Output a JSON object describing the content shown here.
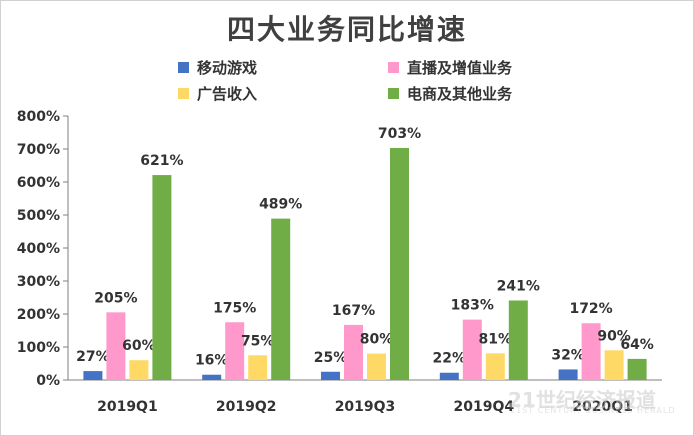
{
  "chart_data": {
    "type": "bar",
    "title": "四大业务同比增速",
    "categories": [
      "2019Q1",
      "2019Q2",
      "2019Q3",
      "2019Q4",
      "2020Q1"
    ],
    "series": [
      {
        "name": "移动游戏",
        "values": [
          27,
          16,
          25,
          22,
          32
        ],
        "labels": [
          "27%",
          "16%",
          "25%",
          "22%",
          "32%"
        ],
        "color": "#4472C4"
      },
      {
        "name": "直播及增值业务",
        "values": [
          205,
          175,
          167,
          183,
          172
        ],
        "labels": [
          "205%",
          "175%",
          "167%",
          "183%",
          "172%"
        ],
        "color": "#FF99CC"
      },
      {
        "name": "广告收入",
        "values": [
          60,
          75,
          80,
          81,
          90
        ],
        "labels": [
          "60%",
          "75%",
          "80%",
          "81%",
          "90%"
        ],
        "color": "#FFD966"
      },
      {
        "name": "电商及其他业务",
        "values": [
          621,
          489,
          703,
          241,
          64
        ],
        "labels": [
          "621%",
          "489%",
          "703%",
          "241%",
          "64%"
        ],
        "color": "#70AD47"
      }
    ],
    "ylim": [
      0,
      800
    ],
    "yticks": [
      "0%",
      "100%",
      "200%",
      "300%",
      "400%",
      "500%",
      "600%",
      "700%",
      "800%"
    ],
    "xlabel": "",
    "ylabel": "",
    "grid": false,
    "legend_position": "top"
  },
  "watermark": {
    "main": "21世纪经济报道",
    "sub": "21ST CENTURY BUSINESS HERALD"
  }
}
